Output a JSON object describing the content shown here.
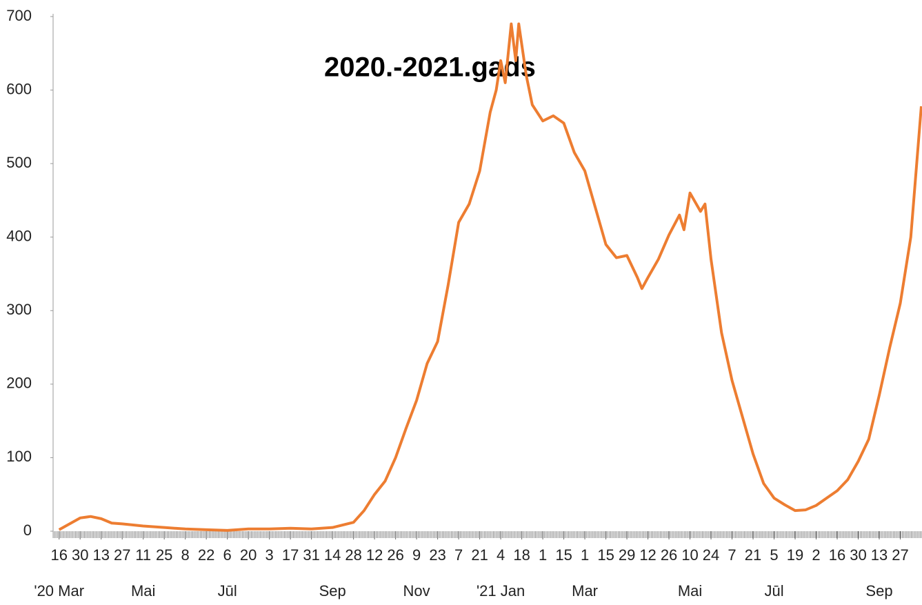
{
  "chart_data": {
    "type": "line",
    "title": "2020.-2021.gads",
    "x": [
      "2020-03-16",
      "2020-03-30",
      "2020-04-06",
      "2020-04-13",
      "2020-04-20",
      "2020-04-27",
      "2020-05-11",
      "2020-05-25",
      "2020-06-08",
      "2020-06-22",
      "2020-07-06",
      "2020-07-20",
      "2020-08-03",
      "2020-08-17",
      "2020-08-31",
      "2020-09-14",
      "2020-09-28",
      "2020-10-05",
      "2020-10-12",
      "2020-10-19",
      "2020-10-26",
      "2020-11-02",
      "2020-11-09",
      "2020-11-16",
      "2020-11-23",
      "2020-11-30",
      "2020-12-07",
      "2020-12-14",
      "2020-12-21",
      "2020-12-28",
      "2021-01-01",
      "2021-01-04",
      "2021-01-07",
      "2021-01-11",
      "2021-01-14",
      "2021-01-16",
      "2021-01-21",
      "2021-01-25",
      "2021-02-01",
      "2021-02-08",
      "2021-02-15",
      "2021-02-22",
      "2021-03-01",
      "2021-03-08",
      "2021-03-15",
      "2021-03-22",
      "2021-03-29",
      "2021-04-05",
      "2021-04-08",
      "2021-04-12",
      "2021-04-19",
      "2021-04-26",
      "2021-05-03",
      "2021-05-06",
      "2021-05-10",
      "2021-05-17",
      "2021-05-20",
      "2021-05-24",
      "2021-05-31",
      "2021-06-07",
      "2021-06-14",
      "2021-06-21",
      "2021-06-28",
      "2021-07-05",
      "2021-07-12",
      "2021-07-19",
      "2021-07-26",
      "2021-08-02",
      "2021-08-09",
      "2021-08-16",
      "2021-08-23",
      "2021-08-30",
      "2021-09-06",
      "2021-09-13",
      "2021-09-20",
      "2021-09-27",
      "2021-10-04",
      "2021-10-11"
    ],
    "series": [
      {
        "color": "#ed7d31",
        "values": [
          2,
          18,
          20,
          17,
          11,
          10,
          7,
          5,
          3,
          2,
          1,
          3,
          3,
          4,
          3,
          5,
          12,
          28,
          50,
          68,
          100,
          140,
          178,
          228,
          258,
          335,
          420,
          445,
          490,
          570,
          600,
          640,
          610,
          690,
          640,
          690,
          620,
          580,
          558,
          565,
          555,
          515,
          490,
          440,
          390,
          372,
          375,
          345,
          330,
          345,
          370,
          403,
          430,
          410,
          460,
          435,
          445,
          370,
          270,
          205,
          155,
          105,
          65,
          45,
          36,
          28,
          29,
          35,
          45,
          55,
          70,
          95,
          125,
          185,
          250,
          310,
          400,
          578
        ]
      }
    ],
    "xlim": [
      "2020-03-12",
      "2021-10-11"
    ],
    "xticks": [
      {
        "value": "2020-03-16",
        "label": "16"
      },
      {
        "value": "2020-03-30",
        "label": "30"
      },
      {
        "value": "2020-04-13",
        "label": "13"
      },
      {
        "value": "2020-04-27",
        "label": "27"
      },
      {
        "value": "2020-05-11",
        "label": "11"
      },
      {
        "value": "2020-05-25",
        "label": "25"
      },
      {
        "value": "2020-06-08",
        "label": "8"
      },
      {
        "value": "2020-06-22",
        "label": "22"
      },
      {
        "value": "2020-07-06",
        "label": "6"
      },
      {
        "value": "2020-07-20",
        "label": "20"
      },
      {
        "value": "2020-08-03",
        "label": "3"
      },
      {
        "value": "2020-08-17",
        "label": "17"
      },
      {
        "value": "2020-08-31",
        "label": "31"
      },
      {
        "value": "2020-09-14",
        "label": "14"
      },
      {
        "value": "2020-09-28",
        "label": "28"
      },
      {
        "value": "2020-10-12",
        "label": "12"
      },
      {
        "value": "2020-10-26",
        "label": "26"
      },
      {
        "value": "2020-11-09",
        "label": "9"
      },
      {
        "value": "2020-11-23",
        "label": "23"
      },
      {
        "value": "2020-12-07",
        "label": "7"
      },
      {
        "value": "2020-12-21",
        "label": "21"
      },
      {
        "value": "2021-01-04",
        "label": "4"
      },
      {
        "value": "2021-01-18",
        "label": "18"
      },
      {
        "value": "2021-02-01",
        "label": "1"
      },
      {
        "value": "2021-02-15",
        "label": "15"
      },
      {
        "value": "2021-03-01",
        "label": "1"
      },
      {
        "value": "2021-03-15",
        "label": "15"
      },
      {
        "value": "2021-03-29",
        "label": "29"
      },
      {
        "value": "2021-04-12",
        "label": "12"
      },
      {
        "value": "2021-04-26",
        "label": "26"
      },
      {
        "value": "2021-05-10",
        "label": "10"
      },
      {
        "value": "2021-05-24",
        "label": "24"
      },
      {
        "value": "2021-06-07",
        "label": "7"
      },
      {
        "value": "2021-06-21",
        "label": "21"
      },
      {
        "value": "2021-07-05",
        "label": "5"
      },
      {
        "value": "2021-07-19",
        "label": "19"
      },
      {
        "value": "2021-08-02",
        "label": "2"
      },
      {
        "value": "2021-08-16",
        "label": "16"
      },
      {
        "value": "2021-08-30",
        "label": "30"
      },
      {
        "value": "2021-09-13",
        "label": "13"
      },
      {
        "value": "2021-09-27",
        "label": "27"
      }
    ],
    "month_labels": [
      {
        "value": "2020-03-16",
        "label": "'20 Mar"
      },
      {
        "value": "2020-05-11",
        "label": "Mai"
      },
      {
        "value": "2020-07-06",
        "label": "Jūl"
      },
      {
        "value": "2020-09-14",
        "label": "Sep"
      },
      {
        "value": "2020-11-09",
        "label": "Nov"
      },
      {
        "value": "2021-01-04",
        "label": "'21 Jan"
      },
      {
        "value": "2021-03-01",
        "label": "Mar"
      },
      {
        "value": "2021-05-10",
        "label": "Mai"
      },
      {
        "value": "2021-07-05",
        "label": "Jūl"
      },
      {
        "value": "2021-09-13",
        "label": "Sep"
      }
    ],
    "ylim": [
      0,
      700
    ],
    "yticks": [
      0,
      100,
      200,
      300,
      400,
      500,
      600,
      700
    ],
    "grid": false
  }
}
